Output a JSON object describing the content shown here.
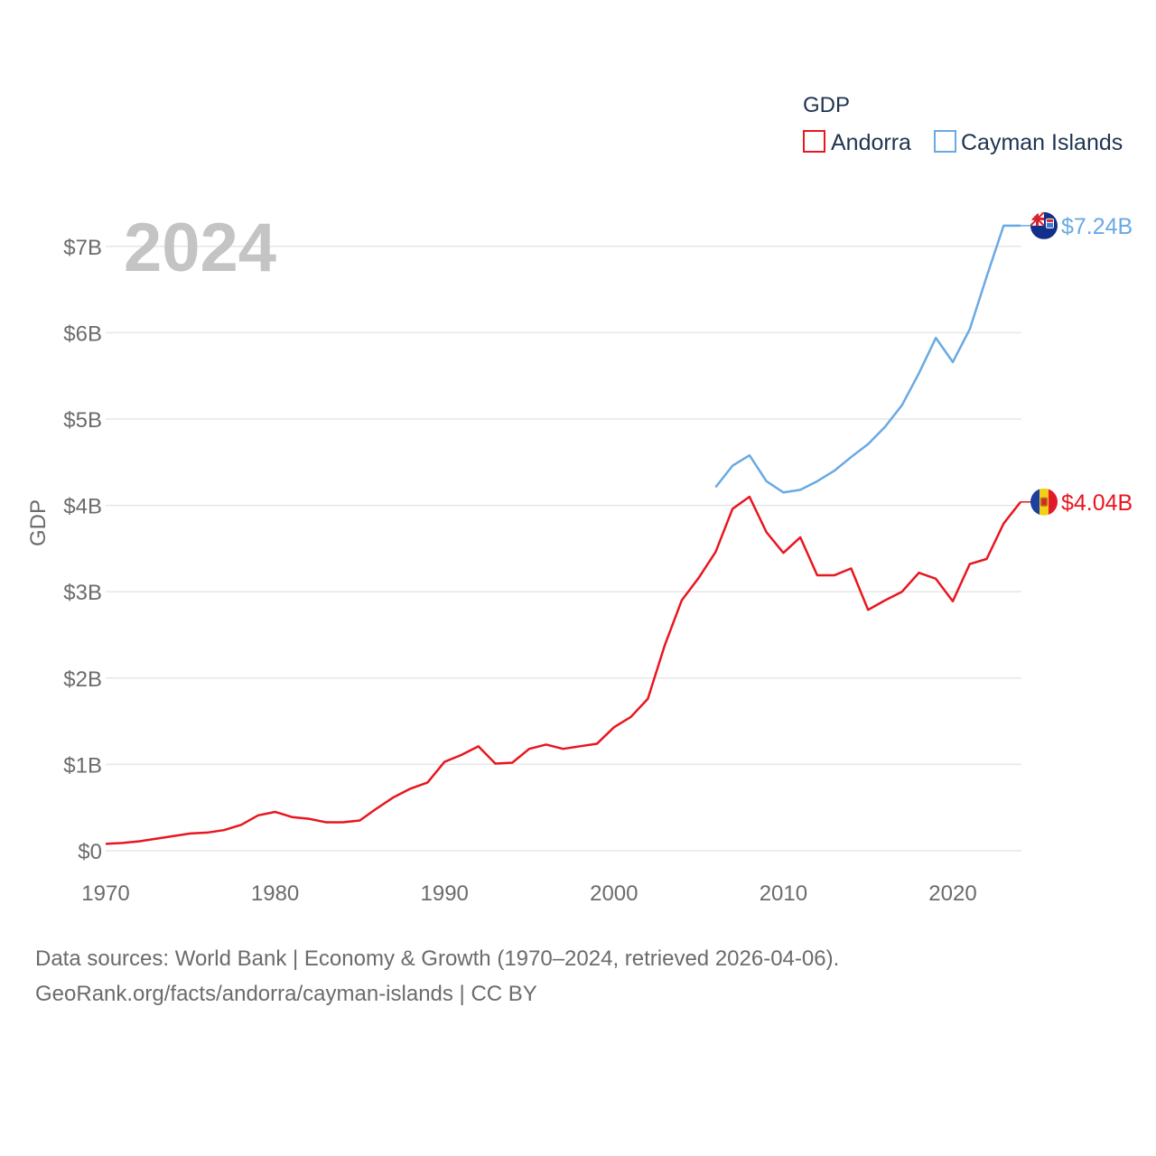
{
  "chart_data": {
    "type": "line",
    "title": "GDP",
    "current_year": "2024",
    "ylabel": "GDP",
    "xlabel": "",
    "xlim": [
      1970,
      2024
    ],
    "ylim": [
      0,
      7.5
    ],
    "x_ticks": [
      {
        "value": 1970,
        "label": "1970"
      },
      {
        "value": 1980,
        "label": "1980"
      },
      {
        "value": 1990,
        "label": "1990"
      },
      {
        "value": 2000,
        "label": "2000"
      },
      {
        "value": 2010,
        "label": "2010"
      },
      {
        "value": 2020,
        "label": "2020"
      }
    ],
    "y_ticks": [
      {
        "value": 0,
        "label": "$0"
      },
      {
        "value": 1,
        "label": "$1B"
      },
      {
        "value": 2,
        "label": "$2B"
      },
      {
        "value": 3,
        "label": "$3B"
      },
      {
        "value": 4,
        "label": "$4B"
      },
      {
        "value": 5,
        "label": "$5B"
      },
      {
        "value": 6,
        "label": "$6B"
      },
      {
        "value": 7,
        "label": "$7B"
      }
    ],
    "legend": {
      "title": "GDP",
      "position": "top-right"
    },
    "series": [
      {
        "name": "Andorra",
        "color": "#e8161f",
        "end_label": "$4.04B",
        "flag": "andorra-flag",
        "x": [
          1970,
          1971,
          1972,
          1973,
          1974,
          1975,
          1976,
          1977,
          1978,
          1979,
          1980,
          1981,
          1982,
          1983,
          1984,
          1985,
          1986,
          1987,
          1988,
          1989,
          1990,
          1991,
          1992,
          1993,
          1994,
          1995,
          1996,
          1997,
          1998,
          1999,
          2000,
          2001,
          2002,
          2003,
          2004,
          2005,
          2006,
          2007,
          2008,
          2009,
          2010,
          2011,
          2012,
          2013,
          2014,
          2015,
          2016,
          2017,
          2018,
          2019,
          2020,
          2021,
          2022,
          2023,
          2024
        ],
        "values": [
          0.08,
          0.09,
          0.11,
          0.14,
          0.17,
          0.2,
          0.21,
          0.24,
          0.3,
          0.41,
          0.45,
          0.39,
          0.37,
          0.33,
          0.33,
          0.35,
          0.49,
          0.62,
          0.72,
          0.79,
          1.03,
          1.11,
          1.21,
          1.01,
          1.02,
          1.18,
          1.23,
          1.18,
          1.21,
          1.24,
          1.43,
          1.55,
          1.76,
          2.38,
          2.9,
          3.16,
          3.46,
          3.96,
          4.1,
          3.69,
          3.45,
          3.63,
          3.19,
          3.19,
          3.27,
          2.79,
          2.9,
          3.0,
          3.22,
          3.15,
          2.89,
          3.32,
          3.38,
          3.79,
          4.04
        ]
      },
      {
        "name": "Cayman Islands",
        "color": "#69a9e4",
        "end_label": "$7.24B",
        "flag": "cayman-islands-flag",
        "x": [
          2006,
          2007,
          2008,
          2009,
          2010,
          2011,
          2012,
          2013,
          2014,
          2015,
          2016,
          2017,
          2018,
          2019,
          2020,
          2021,
          2022,
          2023,
          2024
        ],
        "values": [
          4.21,
          4.46,
          4.58,
          4.28,
          4.15,
          4.18,
          4.28,
          4.4,
          4.56,
          4.71,
          4.91,
          5.16,
          5.53,
          5.94,
          5.66,
          6.04,
          6.65,
          7.24,
          7.24
        ]
      }
    ]
  },
  "source": {
    "line1": "Data sources: World Bank | Economy & Growth (1970–2024, retrieved 2026-04-06).",
    "line2": "GeoRank.org/facts/andorra/cayman-islands | CC BY"
  }
}
